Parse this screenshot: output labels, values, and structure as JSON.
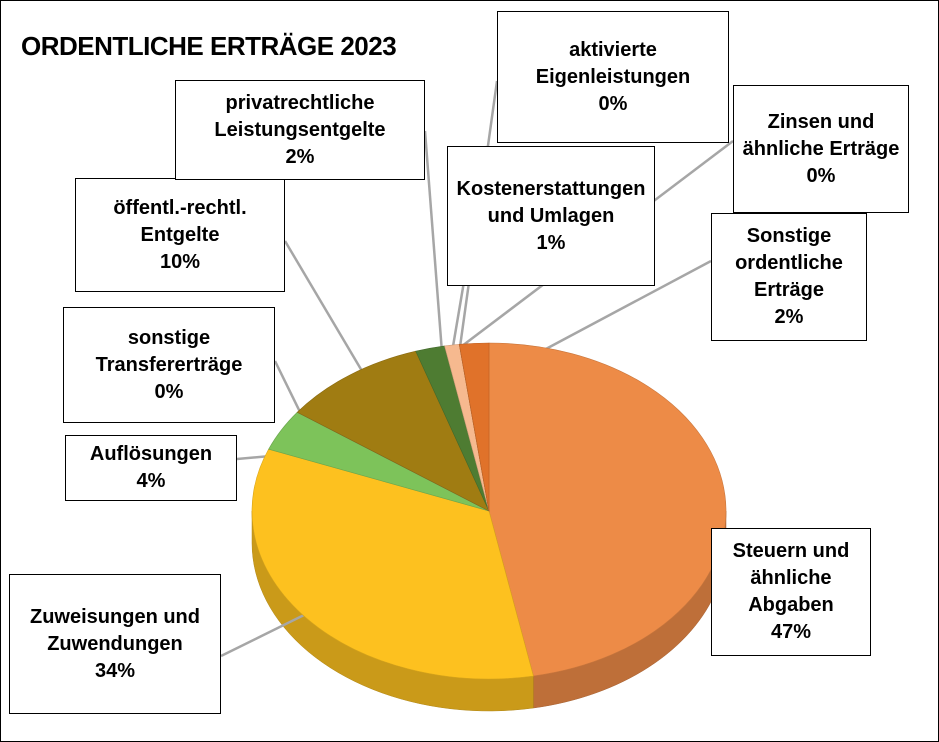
{
  "chart_data": {
    "type": "pie",
    "title": "ORDENTLICHE ERTRÄGE 2023",
    "categories": [
      "Steuern und ähnliche Abgaben",
      "Zuweisungen und Zuwendungen",
      "Auflösungen",
      "sonstige Transfererträge",
      "öffentl.-rechtl. Entgelte",
      "privatrechtliche Leistungsentgelte",
      "Kostenerstattungen und Umlagen",
      "aktivierte Eigenleistungen",
      "Zinsen und ähnliche Erträge",
      "Sonstige ordentliche Erträge"
    ],
    "values": [
      47,
      34,
      4,
      0,
      10,
      2,
      1,
      0,
      0,
      2
    ],
    "value_labels": [
      "47%",
      "34%",
      "4%",
      "0%",
      "10%",
      "2%",
      "1%",
      "0%",
      "0%",
      "2%"
    ],
    "colors": [
      "#ED8B47",
      "#FDC11F",
      "#7DC35A",
      "#5B9BD5",
      "#A07C12",
      "#4E7C32",
      "#F6B98F",
      "#C9A27A",
      "#B56A2E",
      "#E0722A"
    ]
  }
}
